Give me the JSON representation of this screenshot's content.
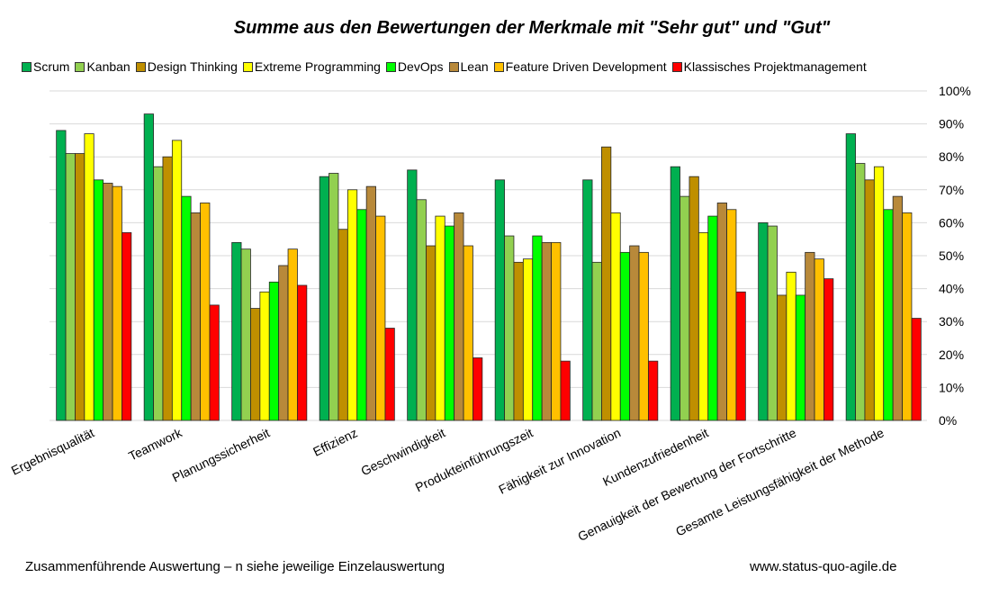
{
  "chart_data": {
    "type": "bar",
    "title": "Summe aus den Bewertungen der Merkmale mit \"Sehr gut\" und \"Gut\"",
    "xlabel": "",
    "ylabel": "",
    "ylim": [
      0,
      100
    ],
    "yticks": [
      "0%",
      "10%",
      "20%",
      "30%",
      "40%",
      "50%",
      "60%",
      "70%",
      "80%",
      "90%",
      "100%"
    ],
    "y_axis_position": "right",
    "grid": true,
    "legend_position": "top",
    "categories": [
      "Ergebnisqualität",
      "Teamwork",
      "Planungssicherheit",
      "Effizienz",
      "Geschwindigkeit",
      "Produkteinführungszeit",
      "Fähigkeit zur Innovation",
      "Kundenzufriedenheit",
      "Genauigkeit der Bewertung der Fortschritte",
      "Gesamte Leistungsfähigkeit der Methode"
    ],
    "series": [
      {
        "name": "Scrum",
        "color": "#00B050",
        "values": [
          88,
          93,
          54,
          74,
          76,
          73,
          73,
          77,
          60,
          87
        ]
      },
      {
        "name": "Kanban",
        "color": "#92D050",
        "values": [
          81,
          77,
          52,
          75,
          67,
          56,
          48,
          68,
          59,
          78
        ]
      },
      {
        "name": "Design Thinking",
        "color": "#BF8F00",
        "values": [
          81,
          80,
          34,
          58,
          53,
          48,
          83,
          74,
          38,
          73
        ]
      },
      {
        "name": "Extreme Programming",
        "color": "#FFFF00",
        "values": [
          87,
          85,
          39,
          70,
          62,
          49,
          63,
          57,
          45,
          77
        ]
      },
      {
        "name": "DevOps",
        "color": "#00FF00",
        "values": [
          73,
          68,
          42,
          64,
          59,
          56,
          51,
          62,
          38,
          64
        ]
      },
      {
        "name": "Lean",
        "color": "#B8893A",
        "values": [
          72,
          63,
          47,
          71,
          63,
          54,
          53,
          66,
          51,
          68
        ]
      },
      {
        "name": "Feature Driven Development",
        "color": "#FFC000",
        "values": [
          71,
          66,
          52,
          62,
          53,
          54,
          51,
          64,
          49,
          63
        ]
      },
      {
        "name": "Klassisches Projektmanagement",
        "color": "#FF0000",
        "values": [
          57,
          35,
          41,
          28,
          19,
          18,
          18,
          39,
          43,
          31
        ]
      }
    ]
  },
  "footer": {
    "left": "Zusammenführende  Auswertung – n siehe jeweilige  Einzelauswertung",
    "right": "www.status-quo-agile.de"
  }
}
